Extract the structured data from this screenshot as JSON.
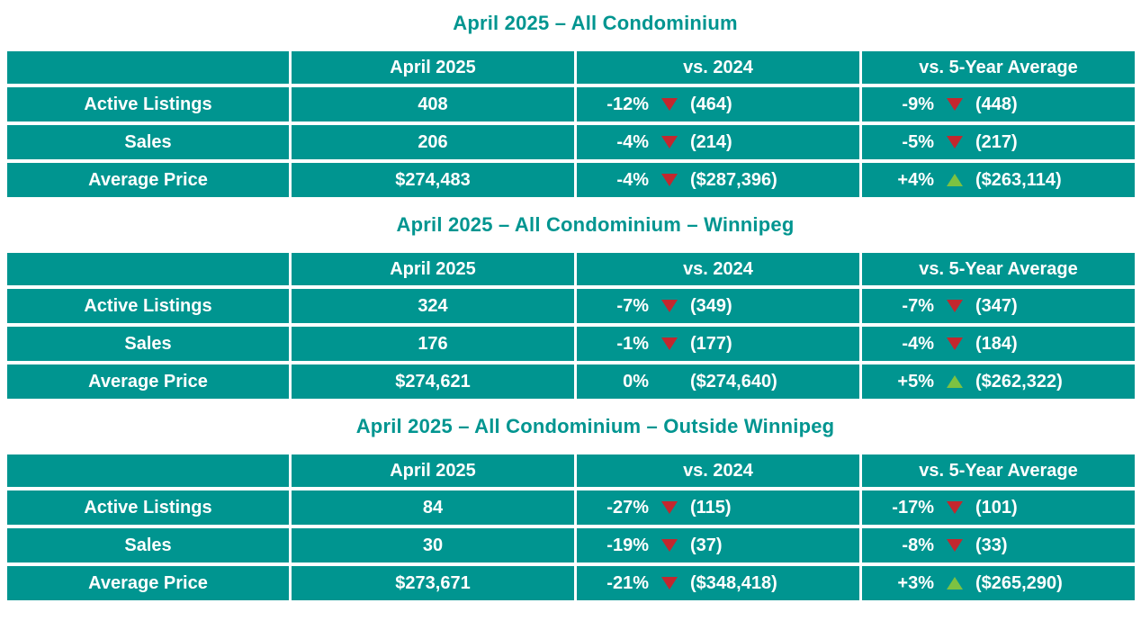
{
  "colors": {
    "teal": "#009590",
    "red": "#C3272E",
    "green": "#7DC242",
    "text": "#FFFFFF"
  },
  "tables": [
    {
      "title": "April 2025 – All Condominium",
      "headers": [
        "",
        "April 2025",
        "vs. 2024",
        "vs. 5-Year Average"
      ],
      "rows": [
        {
          "label": "Active Listings",
          "current": "408",
          "vs_2024": {
            "pct": "-12%",
            "dir": "down",
            "value": "(464)"
          },
          "vs_5yr": {
            "pct": "-9%",
            "dir": "down",
            "value": "(448)"
          }
        },
        {
          "label": "Sales",
          "current": "206",
          "vs_2024": {
            "pct": "-4%",
            "dir": "down",
            "value": "(214)"
          },
          "vs_5yr": {
            "pct": "-5%",
            "dir": "down",
            "value": "(217)"
          }
        },
        {
          "label": "Average Price",
          "current": "$274,483",
          "vs_2024": {
            "pct": "-4%",
            "dir": "down",
            "value": "($287,396)"
          },
          "vs_5yr": {
            "pct": "+4%",
            "dir": "up",
            "value": "($263,114)"
          }
        }
      ]
    },
    {
      "title": "April 2025 – All Condominium – Winnipeg",
      "headers": [
        "",
        "April 2025",
        "vs. 2024",
        "vs. 5-Year Average"
      ],
      "rows": [
        {
          "label": "Active Listings",
          "current": "324",
          "vs_2024": {
            "pct": "-7%",
            "dir": "down",
            "value": "(349)"
          },
          "vs_5yr": {
            "pct": "-7%",
            "dir": "down",
            "value": "(347)"
          }
        },
        {
          "label": "Sales",
          "current": "176",
          "vs_2024": {
            "pct": "-1%",
            "dir": "down",
            "value": "(177)"
          },
          "vs_5yr": {
            "pct": "-4%",
            "dir": "down",
            "value": "(184)"
          }
        },
        {
          "label": "Average Price",
          "current": "$274,621",
          "vs_2024": {
            "pct": "0%",
            "dir": "none",
            "value": "($274,640)"
          },
          "vs_5yr": {
            "pct": "+5%",
            "dir": "up",
            "value": "($262,322)"
          }
        }
      ]
    },
    {
      "title": "April 2025 – All Condominium – Outside Winnipeg",
      "headers": [
        "",
        "April 2025",
        "vs. 2024",
        "vs. 5-Year Average"
      ],
      "rows": [
        {
          "label": "Active Listings",
          "current": "84",
          "vs_2024": {
            "pct": "-27%",
            "dir": "down",
            "value": "(115)"
          },
          "vs_5yr": {
            "pct": "-17%",
            "dir": "down",
            "value": "(101)"
          }
        },
        {
          "label": "Sales",
          "current": "30",
          "vs_2024": {
            "pct": "-19%",
            "dir": "down",
            "value": "(37)"
          },
          "vs_5yr": {
            "pct": "-8%",
            "dir": "down",
            "value": "(33)"
          }
        },
        {
          "label": "Average Price",
          "current": "$273,671",
          "vs_2024": {
            "pct": "-21%",
            "dir": "down",
            "value": "($348,418)"
          },
          "vs_5yr": {
            "pct": "+3%",
            "dir": "up",
            "value": "($265,290)"
          }
        }
      ]
    }
  ]
}
